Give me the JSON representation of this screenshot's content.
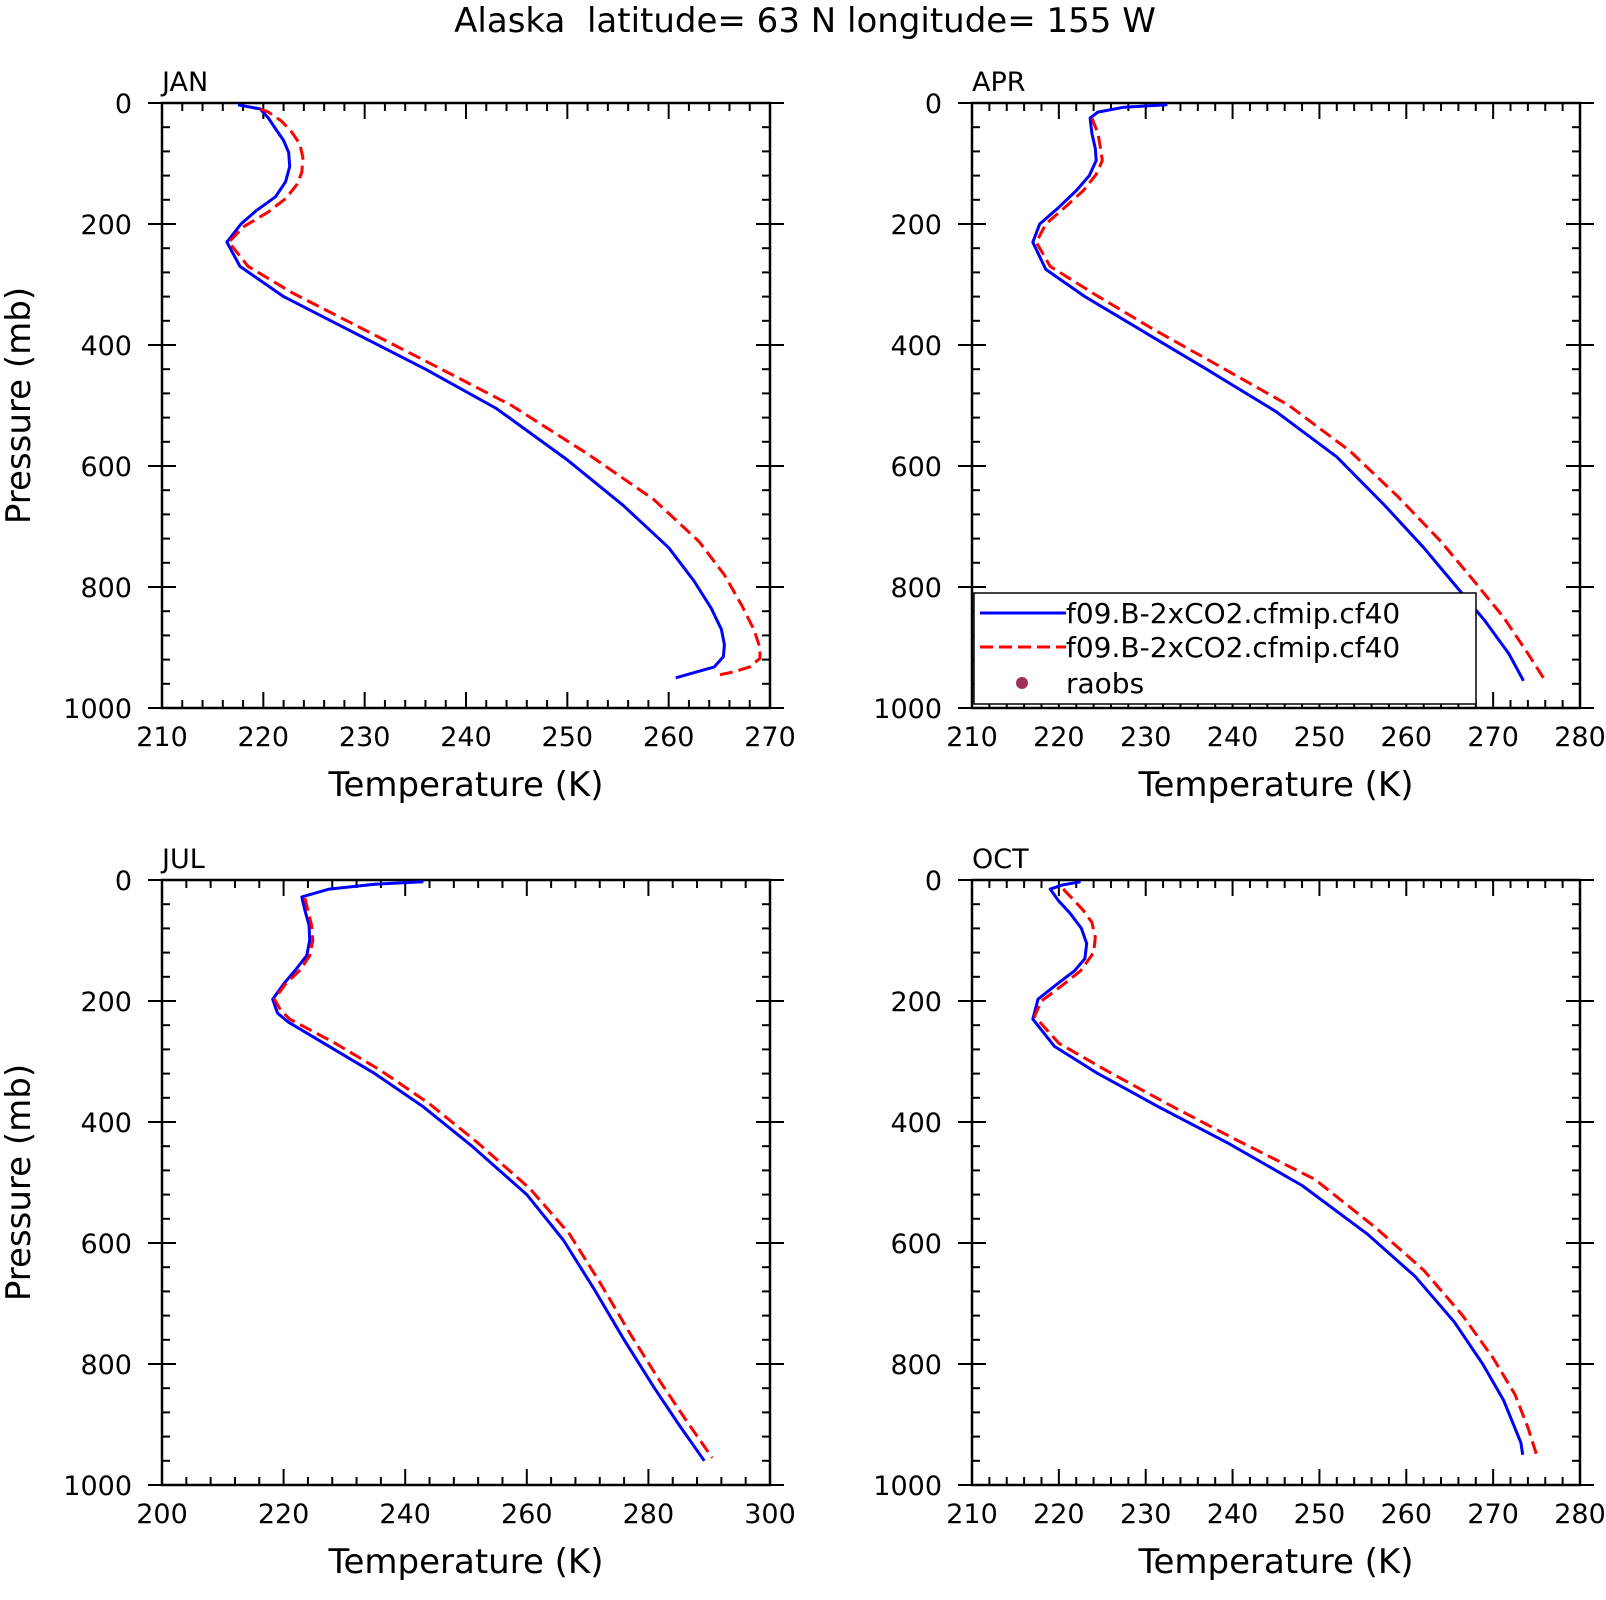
{
  "figure": {
    "title": "Alaska  latitude= 63 N longitude= 155 W"
  },
  "legend": {
    "entries": [
      {
        "label": "f09.B-2xCO2.cfmip.cf40",
        "style": "solid",
        "color": "#0000ff"
      },
      {
        "label": "f09.B-2xCO2.cfmip.cf40",
        "style": "dashed",
        "color": "#ff0000"
      },
      {
        "label": "raobs",
        "style": "marker",
        "color": "#a0305a"
      }
    ]
  },
  "chart_data": [
    {
      "type": "line",
      "panel": "JAN",
      "xlabel": "Temperature (K)",
      "ylabel": "Pressure (mb)",
      "xlim": [
        210,
        270
      ],
      "ylim": [
        1000,
        0
      ],
      "xticks": [
        210,
        220,
        230,
        240,
        250,
        260,
        270
      ],
      "yticks": [
        0,
        200,
        400,
        600,
        800,
        1000
      ],
      "grid": false,
      "legend": false,
      "series": [
        {
          "color": "#0000ff",
          "style": "solid",
          "points": [
            [
              217.5,
              3
            ],
            [
              219.7,
              10
            ],
            [
              220.5,
              25
            ],
            [
              221.3,
              45
            ],
            [
              222.0,
              62
            ],
            [
              222.5,
              82
            ],
            [
              222.6,
              105
            ],
            [
              222.2,
              130
            ],
            [
              221.2,
              155
            ],
            [
              219.3,
              178
            ],
            [
              217.8,
              200
            ],
            [
              216.4,
              230
            ],
            [
              217.7,
              270
            ],
            [
              222.0,
              320
            ],
            [
              229.0,
              380
            ],
            [
              236.0,
              440
            ],
            [
              243.0,
              505
            ],
            [
              250.0,
              590
            ],
            [
              255.5,
              665
            ],
            [
              260.0,
              735
            ],
            [
              262.5,
              790
            ],
            [
              264.2,
              835
            ],
            [
              265.2,
              870
            ],
            [
              265.5,
              895
            ],
            [
              265.4,
              915
            ],
            [
              264.5,
              932
            ],
            [
              260.7,
              950
            ]
          ]
        },
        {
          "color": "#ff0000",
          "style": "dashed",
          "points": [
            [
              219.7,
              10
            ],
            [
              220.5,
              15
            ],
            [
              221.8,
              30
            ],
            [
              222.8,
              48
            ],
            [
              223.6,
              68
            ],
            [
              223.9,
              90
            ],
            [
              223.8,
              115
            ],
            [
              223.3,
              135
            ],
            [
              222.2,
              158
            ],
            [
              220.5,
              180
            ],
            [
              218.0,
              205
            ],
            [
              216.6,
              230
            ],
            [
              218.5,
              270
            ],
            [
              223.0,
              315
            ],
            [
              230.0,
              375
            ],
            [
              237.0,
              435
            ],
            [
              244.5,
              500
            ],
            [
              252.0,
              580
            ],
            [
              258.5,
              655
            ],
            [
              263.0,
              725
            ],
            [
              265.5,
              780
            ],
            [
              267.2,
              830
            ],
            [
              268.4,
              870
            ],
            [
              269.0,
              900
            ],
            [
              269.0,
              918
            ],
            [
              268.0,
              932
            ],
            [
              266.5,
              940
            ],
            [
              264.5,
              947
            ]
          ]
        }
      ]
    },
    {
      "type": "line",
      "panel": "APR",
      "xlabel": "Temperature (K)",
      "ylabel": "",
      "xlim": [
        210,
        280
      ],
      "ylim": [
        1000,
        0
      ],
      "xticks": [
        210,
        220,
        230,
        240,
        250,
        260,
        270,
        280
      ],
      "yticks": [
        0,
        200,
        400,
        600,
        800,
        1000
      ],
      "grid": false,
      "legend": "inside-lower-left",
      "series": [
        {
          "color": "#0000ff",
          "style": "solid",
          "points": [
            [
              232.5,
              3
            ],
            [
              227.5,
              7
            ],
            [
              224.5,
              15
            ],
            [
              223.6,
              25
            ],
            [
              223.8,
              50
            ],
            [
              224.2,
              75
            ],
            [
              224.3,
              95
            ],
            [
              223.5,
              120
            ],
            [
              222.0,
              145
            ],
            [
              219.8,
              175
            ],
            [
              217.8,
              200
            ],
            [
              217.0,
              230
            ],
            [
              218.5,
              275
            ],
            [
              223.0,
              320
            ],
            [
              230.0,
              380
            ],
            [
              237.0,
              440
            ],
            [
              245.0,
              510
            ],
            [
              252.0,
              585
            ],
            [
              257.5,
              665
            ],
            [
              262.0,
              735
            ],
            [
              265.8,
              800
            ],
            [
              269.0,
              855
            ],
            [
              271.8,
              910
            ],
            [
              273.5,
              955
            ]
          ]
        },
        {
          "color": "#ff0000",
          "style": "dashed",
          "points": [
            [
              223.8,
              25
            ],
            [
              224.5,
              50
            ],
            [
              224.8,
              75
            ],
            [
              225.0,
              95
            ],
            [
              224.3,
              118
            ],
            [
              222.8,
              145
            ],
            [
              220.5,
              175
            ],
            [
              218.5,
              200
            ],
            [
              217.4,
              230
            ],
            [
              219.0,
              270
            ],
            [
              224.0,
              315
            ],
            [
              231.0,
              375
            ],
            [
              238.5,
              435
            ],
            [
              246.5,
              500
            ],
            [
              253.5,
              575
            ],
            [
              259.0,
              650
            ],
            [
              264.0,
              725
            ],
            [
              267.8,
              790
            ],
            [
              271.2,
              850
            ],
            [
              274.0,
              910
            ],
            [
              276.0,
              955
            ]
          ]
        }
      ]
    },
    {
      "type": "line",
      "panel": "JUL",
      "xlabel": "Temperature (K)",
      "ylabel": "Pressure (mb)",
      "xlim": [
        200,
        300
      ],
      "ylim": [
        1000,
        0
      ],
      "xticks": [
        200,
        220,
        240,
        260,
        280,
        300
      ],
      "yticks": [
        0,
        200,
        400,
        600,
        800,
        1000
      ],
      "grid": false,
      "legend": false,
      "series": [
        {
          "color": "#0000ff",
          "style": "solid",
          "points": [
            [
              243.0,
              3
            ],
            [
              235.0,
              7
            ],
            [
              227.5,
              15
            ],
            [
              223.0,
              28
            ],
            [
              223.5,
              50
            ],
            [
              224.2,
              75
            ],
            [
              224.3,
              100
            ],
            [
              223.8,
              125
            ],
            [
              222.0,
              148
            ],
            [
              220.0,
              172
            ],
            [
              218.2,
              197
            ],
            [
              219.0,
              220
            ],
            [
              220.8,
              235
            ],
            [
              227.5,
              275
            ],
            [
              235.0,
              320
            ],
            [
              243.0,
              375
            ],
            [
              251.0,
              440
            ],
            [
              260.0,
              520
            ],
            [
              266.0,
              595
            ],
            [
              271.0,
              675
            ],
            [
              276.0,
              760
            ],
            [
              281.0,
              840
            ],
            [
              285.0,
              900
            ],
            [
              289.2,
              960
            ]
          ]
        },
        {
          "color": "#ff0000",
          "style": "dashed",
          "points": [
            [
              223.5,
              30
            ],
            [
              224.0,
              50
            ],
            [
              224.6,
              75
            ],
            [
              224.8,
              100
            ],
            [
              224.3,
              125
            ],
            [
              222.8,
              148
            ],
            [
              220.3,
              172
            ],
            [
              218.5,
              197
            ],
            [
              219.5,
              215
            ],
            [
              221.0,
              230
            ],
            [
              228.5,
              270
            ],
            [
              236.0,
              315
            ],
            [
              244.0,
              370
            ],
            [
              252.0,
              435
            ],
            [
              260.5,
              510
            ],
            [
              267.0,
              585
            ],
            [
              272.0,
              665
            ],
            [
              277.0,
              750
            ],
            [
              282.0,
              830
            ],
            [
              286.0,
              890
            ],
            [
              290.5,
              955
            ]
          ]
        }
      ]
    },
    {
      "type": "line",
      "panel": "OCT",
      "xlabel": "Temperature (K)",
      "ylabel": "",
      "xlim": [
        210,
        280
      ],
      "ylim": [
        1000,
        0
      ],
      "xticks": [
        210,
        220,
        230,
        240,
        250,
        260,
        270,
        280
      ],
      "yticks": [
        0,
        200,
        400,
        600,
        800,
        1000
      ],
      "grid": false,
      "legend": false,
      "series": [
        {
          "color": "#0000ff",
          "style": "solid",
          "points": [
            [
              222.5,
              3
            ],
            [
              220.5,
              8
            ],
            [
              219.0,
              15
            ],
            [
              220.0,
              35
            ],
            [
              221.3,
              55
            ],
            [
              222.6,
              80
            ],
            [
              223.2,
              105
            ],
            [
              223.0,
              130
            ],
            [
              221.8,
              150
            ],
            [
              219.8,
              172
            ],
            [
              217.6,
              197
            ],
            [
              217.0,
              230
            ],
            [
              219.5,
              275
            ],
            [
              224.5,
              320
            ],
            [
              231.5,
              375
            ],
            [
              239.5,
              435
            ],
            [
              248.0,
              505
            ],
            [
              255.5,
              585
            ],
            [
              261.0,
              655
            ],
            [
              265.5,
              730
            ],
            [
              268.8,
              800
            ],
            [
              271.2,
              860
            ],
            [
              273.2,
              930
            ],
            [
              273.4,
              950
            ]
          ]
        },
        {
          "color": "#ff0000",
          "style": "dashed",
          "points": [
            [
              220.5,
              15
            ],
            [
              221.5,
              30
            ],
            [
              222.8,
              50
            ],
            [
              223.8,
              70
            ],
            [
              224.2,
              95
            ],
            [
              224.0,
              120
            ],
            [
              222.5,
              150
            ],
            [
              220.3,
              175
            ],
            [
              218.0,
              200
            ],
            [
              217.2,
              225
            ],
            [
              220.0,
              270
            ],
            [
              225.5,
              315
            ],
            [
              232.5,
              370
            ],
            [
              240.5,
              430
            ],
            [
              249.5,
              495
            ],
            [
              256.5,
              575
            ],
            [
              262.0,
              645
            ],
            [
              266.5,
              720
            ],
            [
              270.0,
              790
            ],
            [
              272.5,
              850
            ],
            [
              274.0,
              905
            ],
            [
              275.0,
              950
            ]
          ]
        }
      ]
    }
  ]
}
